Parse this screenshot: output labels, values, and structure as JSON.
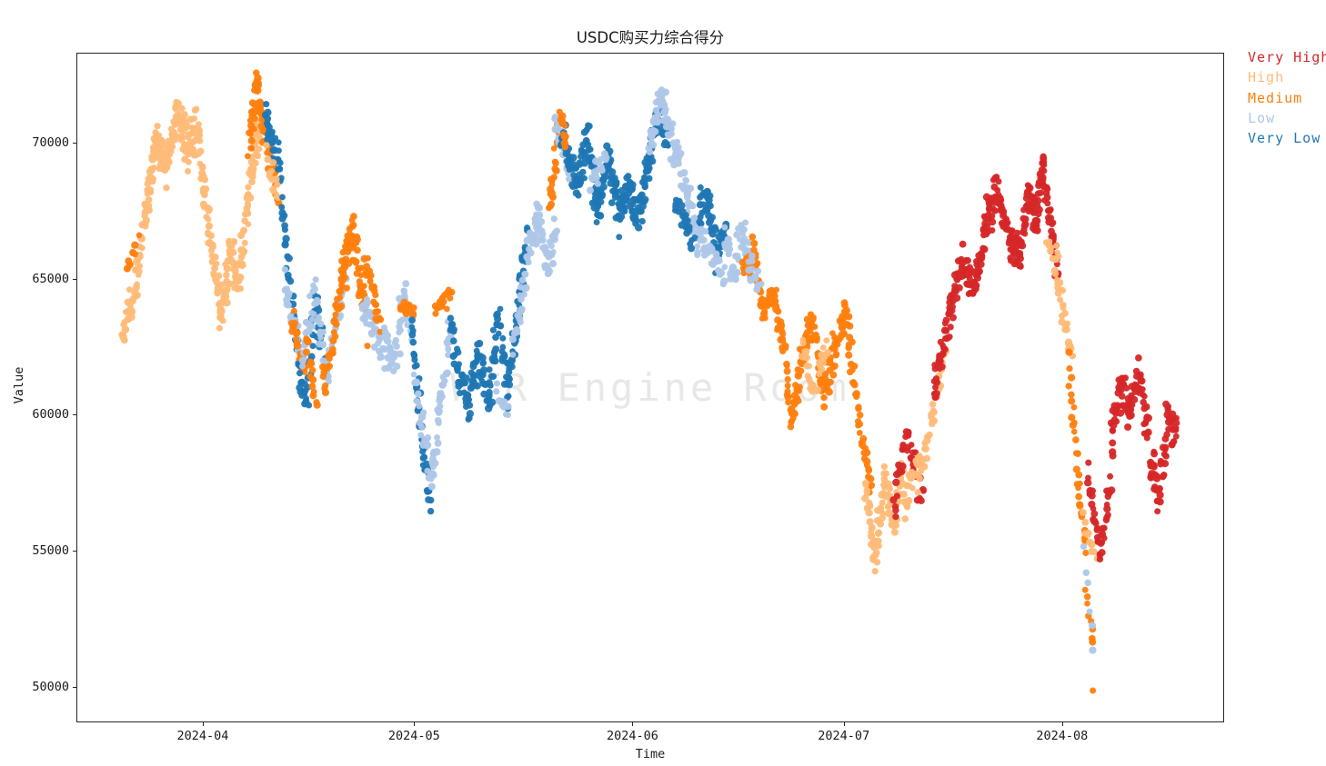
{
  "figure": {
    "watermark": "WTR Engine Room"
  },
  "chart_data": {
    "type": "scatter",
    "title": "USDC购买力综合得分",
    "xlabel": "Time",
    "ylabel": "Value",
    "grid": false,
    "x_axis": {
      "t_unit": "days since 2024-03-01",
      "t_range": [
        13.06,
        176.0
      ],
      "tick_t": [
        31,
        61,
        92,
        122,
        153
      ],
      "tick_labels": [
        "2024-04",
        "2024-05",
        "2024-06",
        "2024-07",
        "2024-08"
      ]
    },
    "y_axis": {
      "range": [
        48700,
        73300
      ],
      "ticks": [
        70000,
        65000,
        60000,
        55000,
        50000
      ],
      "tick_labels": [
        "70000",
        "65000",
        "60000",
        "55000",
        "50000"
      ]
    },
    "legend": {
      "position": "outside upper right",
      "entries": [
        {
          "label": "Very High",
          "color": "#d62728"
        },
        {
          "label": "High",
          "color": "#ffbb78"
        },
        {
          "label": "Medium",
          "color": "#ff7f0e"
        },
        {
          "label": "Low",
          "color": "#aec7e8"
        },
        {
          "label": "Very Low",
          "color": "#1f77b4"
        }
      ]
    },
    "point_style": {
      "shape": "circle",
      "radius_px": 3.8
    },
    "series_segments": [
      {
        "category": "High",
        "t": [
          19.5,
          22.8
        ],
        "values": [
          62800,
          64500,
          67300
        ],
        "n": 55,
        "spread": 550
      },
      {
        "category": "Medium",
        "t": [
          20.0,
          21.6
        ],
        "values": [
          65200,
          66500
        ],
        "n": 10,
        "spread": 350
      },
      {
        "category": "High",
        "t": [
          22.8,
          30.2
        ],
        "values": [
          67600,
          70100,
          69000,
          71200,
          69700,
          70800
        ],
        "n": 160,
        "spread": 650
      },
      {
        "category": "High",
        "t": [
          30.2,
          33.6
        ],
        "values": [
          70300,
          66500,
          63600
        ],
        "n": 70,
        "spread": 600
      },
      {
        "category": "High",
        "t": [
          33.6,
          37.3
        ],
        "values": [
          63900,
          66200,
          64700,
          67800
        ],
        "n": 80,
        "spread": 650
      },
      {
        "category": "High",
        "t": [
          37.3,
          39.0
        ],
        "values": [
          68200,
          70800
        ],
        "n": 40,
        "spread": 600
      },
      {
        "category": "Medium",
        "t": [
          37.5,
          39.5
        ],
        "values": [
          69800,
          72200,
          70600
        ],
        "n": 45,
        "spread": 550
      },
      {
        "category": "Medium",
        "t": [
          39.5,
          41.5
        ],
        "values": [
          70600,
          68200
        ],
        "n": 30,
        "spread": 600
      },
      {
        "category": "Very Low",
        "t": [
          39.8,
          42.0
        ],
        "values": [
          71000,
          68800
        ],
        "n": 35,
        "spread": 700
      },
      {
        "category": "High",
        "t": [
          40.0,
          41.5
        ],
        "values": [
          69500,
          68000
        ],
        "n": 15,
        "spread": 500
      },
      {
        "category": "Very Low",
        "t": [
          42.0,
          44.5
        ],
        "values": [
          68000,
          61900
        ],
        "n": 30,
        "spread": 450
      },
      {
        "category": "Low",
        "t": [
          42.5,
          45.0
        ],
        "values": [
          65000,
          61900
        ],
        "n": 25,
        "spread": 550
      },
      {
        "category": "Medium",
        "t": [
          43.5,
          45.5
        ],
        "values": [
          63500,
          61500
        ],
        "n": 20,
        "spread": 500
      },
      {
        "category": "Very Low",
        "t": [
          44.5,
          48.0
        ],
        "values": [
          61500,
          60600,
          64300,
          62300
        ],
        "n": 45,
        "spread": 600
      },
      {
        "category": "Low",
        "t": [
          45.0,
          48.5
        ],
        "values": [
          62000,
          64500,
          61200
        ],
        "n": 45,
        "spread": 650
      },
      {
        "category": "Medium",
        "t": [
          45.5,
          47.0
        ],
        "values": [
          62800,
          60500
        ],
        "n": 15,
        "spread": 450
      },
      {
        "category": "Low",
        "t": [
          48.5,
          51.0
        ],
        "values": [
          61500,
          65300
        ],
        "n": 35,
        "spread": 550
      },
      {
        "category": "Medium",
        "t": [
          48.0,
          50.5
        ],
        "values": [
          61000,
          64800
        ],
        "n": 30,
        "spread": 500
      },
      {
        "category": "Medium",
        "t": [
          50.5,
          54.0
        ],
        "values": [
          64800,
          66800,
          63400
        ],
        "n": 70,
        "spread": 750
      },
      {
        "category": "Low",
        "t": [
          53.5,
          57.0
        ],
        "values": [
          64000,
          62200
        ],
        "n": 45,
        "spread": 650
      },
      {
        "category": "Medium",
        "t": [
          54.0,
          56.0
        ],
        "values": [
          65500,
          63500
        ],
        "n": 25,
        "spread": 500
      },
      {
        "category": "Low",
        "t": [
          57.0,
          60.5
        ],
        "values": [
          62800,
          61800,
          64600,
          63300
        ],
        "n": 50,
        "spread": 550
      },
      {
        "category": "Medium",
        "t": [
          59.0,
          60.8
        ],
        "values": [
          63900,
          63900
        ],
        "n": 15,
        "spread": 350
      },
      {
        "category": "Very Low",
        "t": [
          60.5,
          63.2
        ],
        "values": [
          63400,
          59500,
          56800
        ],
        "n": 45,
        "spread": 450
      },
      {
        "category": "Low",
        "t": [
          61.0,
          63.0
        ],
        "values": [
          61500,
          57900
        ],
        "n": 25,
        "spread": 450
      },
      {
        "category": "Low",
        "t": [
          63.2,
          66.0
        ],
        "values": [
          57400,
          60500,
          63100
        ],
        "n": 45,
        "spread": 550
      },
      {
        "category": "Medium",
        "t": [
          64.0,
          66.2
        ],
        "values": [
          63900,
          64500
        ],
        "n": 18,
        "spread": 350
      },
      {
        "category": "Very Low",
        "t": [
          66.0,
          70.0
        ],
        "values": [
          63600,
          61400,
          60600,
          62200
        ],
        "n": 60,
        "spread": 650
      },
      {
        "category": "Very Low",
        "t": [
          70.0,
          74.3
        ],
        "values": [
          62100,
          60600,
          63700,
          60700
        ],
        "n": 65,
        "spread": 700
      },
      {
        "category": "Low",
        "t": [
          72.5,
          74.3
        ],
        "values": [
          60800,
          60300
        ],
        "n": 12,
        "spread": 350
      },
      {
        "category": "Very Low",
        "t": [
          74.3,
          77.0
        ],
        "values": [
          61000,
          64000,
          66800
        ],
        "n": 40,
        "spread": 550
      },
      {
        "category": "Low",
        "t": [
          75.0,
          77.5
        ],
        "values": [
          62500,
          66500
        ],
        "n": 30,
        "spread": 550
      },
      {
        "category": "Low",
        "t": [
          77.5,
          81.0
        ],
        "values": [
          66200,
          67600,
          65300,
          67100
        ],
        "n": 60,
        "spread": 650
      },
      {
        "category": "Medium",
        "t": [
          80.0,
          81.7
        ],
        "values": [
          67600,
          71200
        ],
        "n": 30,
        "spread": 450
      },
      {
        "category": "Low",
        "t": [
          81.0,
          83.0
        ],
        "values": [
          70800,
          69000
        ],
        "n": 30,
        "spread": 600
      },
      {
        "category": "Very Low",
        "t": [
          81.7,
          84.0
        ],
        "values": [
          70600,
          68400
        ],
        "n": 35,
        "spread": 600
      },
      {
        "category": "Medium",
        "t": [
          81.7,
          82.5
        ],
        "values": [
          70900,
          69800
        ],
        "n": 8,
        "spread": 300
      },
      {
        "category": "Very Low",
        "t": [
          84.0,
          94.3
        ],
        "values": [
          68400,
          70200,
          67400,
          69700,
          67600,
          68400,
          67300,
          69400
        ],
        "n": 190,
        "spread": 700
      },
      {
        "category": "Low",
        "t": [
          86.0,
          88.0
        ],
        "values": [
          68500,
          69500
        ],
        "n": 18,
        "spread": 450
      },
      {
        "category": "Very Low",
        "t": [
          94.3,
          97.0
        ],
        "values": [
          69600,
          71100,
          70200
        ],
        "n": 45,
        "spread": 600
      },
      {
        "category": "Low",
        "t": [
          94.3,
          97.3
        ],
        "values": [
          69800,
          71600,
          70400
        ],
        "n": 50,
        "spread": 550
      },
      {
        "category": "Low",
        "t": [
          97.3,
          101.3
        ],
        "values": [
          70400,
          66400
        ],
        "n": 55,
        "spread": 700
      },
      {
        "category": "Very Low",
        "t": [
          98.0,
          100.5
        ],
        "values": [
          68000,
          66600
        ],
        "n": 25,
        "spread": 500
      },
      {
        "category": "Very Low",
        "t": [
          101.3,
          105.0
        ],
        "values": [
          67400,
          68000,
          65900,
          66700
        ],
        "n": 50,
        "spread": 550
      },
      {
        "category": "Low",
        "t": [
          101.5,
          105.0
        ],
        "values": [
          66500,
          65200
        ],
        "n": 30,
        "spread": 500
      },
      {
        "category": "Low",
        "t": [
          105.0,
          108.8
        ],
        "values": [
          66800,
          65300,
          67000,
          65000
        ],
        "n": 50,
        "spread": 550
      },
      {
        "category": "Medium",
        "t": [
          107.5,
          109.0
        ],
        "values": [
          65300,
          65800
        ],
        "n": 14,
        "spread": 400
      },
      {
        "category": "Medium",
        "t": [
          109.0,
          113.2
        ],
        "values": [
          66300,
          63600,
          64800,
          62900
        ],
        "n": 65,
        "spread": 550
      },
      {
        "category": "Low",
        "t": [
          108.0,
          110.0
        ],
        "values": [
          65800,
          64800
        ],
        "n": 15,
        "spread": 450
      },
      {
        "category": "Medium",
        "t": [
          113.2,
          115.6
        ],
        "values": [
          62800,
          59600,
          61400
        ],
        "n": 35,
        "spread": 450
      },
      {
        "category": "Medium",
        "t": [
          115.6,
          122.2
        ],
        "values": [
          61500,
          63600,
          60900,
          62400,
          63800
        ],
        "n": 95,
        "spread": 650
      },
      {
        "category": "High",
        "t": [
          116.0,
          119.5
        ],
        "values": [
          62500,
          60900,
          62800
        ],
        "n": 30,
        "spread": 450
      },
      {
        "category": "Medium",
        "t": [
          122.2,
          125.7
        ],
        "values": [
          63700,
          60100,
          57200
        ],
        "n": 45,
        "spread": 550
      },
      {
        "category": "High",
        "t": [
          125.0,
          130.3
        ],
        "values": [
          57600,
          54600,
          57900,
          55700,
          58200
        ],
        "n": 85,
        "spread": 600
      },
      {
        "category": "Very High",
        "t": [
          129.0,
          133.0
        ],
        "values": [
          56700,
          59200,
          57000
        ],
        "n": 40,
        "spread": 550
      },
      {
        "category": "High",
        "t": [
          130.3,
          132.6
        ],
        "values": [
          56500,
          58500
        ],
        "n": 25,
        "spread": 500
      },
      {
        "category": "High",
        "t": [
          132.6,
          136.2
        ],
        "values": [
          57600,
          62400
        ],
        "n": 40,
        "spread": 400
      },
      {
        "category": "Very High",
        "t": [
          134.6,
          140.5
        ],
        "values": [
          60900,
          63300,
          65600,
          64600
        ],
        "n": 90,
        "spread": 650
      },
      {
        "category": "Very High",
        "t": [
          140.5,
          147.0
        ],
        "values": [
          64700,
          67100,
          68400,
          66300,
          66000
        ],
        "n": 110,
        "spread": 700
      },
      {
        "category": "Very High",
        "t": [
          147.0,
          150.3
        ],
        "values": [
          66100,
          68100,
          67200,
          69600
        ],
        "n": 70,
        "spread": 650
      },
      {
        "category": "Very High",
        "t": [
          150.3,
          152.2
        ],
        "values": [
          69000,
          65200
        ],
        "n": 35,
        "spread": 600
      },
      {
        "category": "High",
        "t": [
          150.8,
          152.3
        ],
        "values": [
          66300,
          65900
        ],
        "n": 12,
        "spread": 350
      },
      {
        "category": "High",
        "t": [
          151.8,
          154.2
        ],
        "values": [
          65400,
          62400
        ],
        "n": 25,
        "spread": 450
      },
      {
        "category": "Medium",
        "t": [
          153.8,
          156.3
        ],
        "values": [
          62000,
          57900,
          55200
        ],
        "n": 30,
        "spread": 450
      },
      {
        "category": "Medium",
        "t": [
          156.3,
          157.4
        ],
        "values": [
          53500,
          51600
        ],
        "n": 8,
        "spread": 250
      },
      {
        "category": "Low",
        "t": [
          156.0,
          157.4
        ],
        "values": [
          55000,
          51500
        ],
        "n": 6,
        "spread": 300
      },
      {
        "category": "High",
        "t": [
          155.8,
          157.6
        ],
        "values": [
          56300,
          54700
        ],
        "n": 10,
        "spread": 350
      },
      {
        "category": "Medium",
        "t": [
          157.2,
          157.2
        ],
        "values": [
          49900
        ],
        "n": 1,
        "spread": 0
      },
      {
        "category": "Very High",
        "t": [
          156.6,
          159.8
        ],
        "values": [
          57700,
          54900,
          57400
        ],
        "n": 40,
        "spread": 500
      },
      {
        "category": "Very High",
        "t": [
          159.8,
          169.2
        ],
        "values": [
          58600,
          61300,
          60000,
          61600,
          58900,
          57000,
          59800,
          59400
        ],
        "n": 150,
        "spread": 700
      }
    ]
  }
}
